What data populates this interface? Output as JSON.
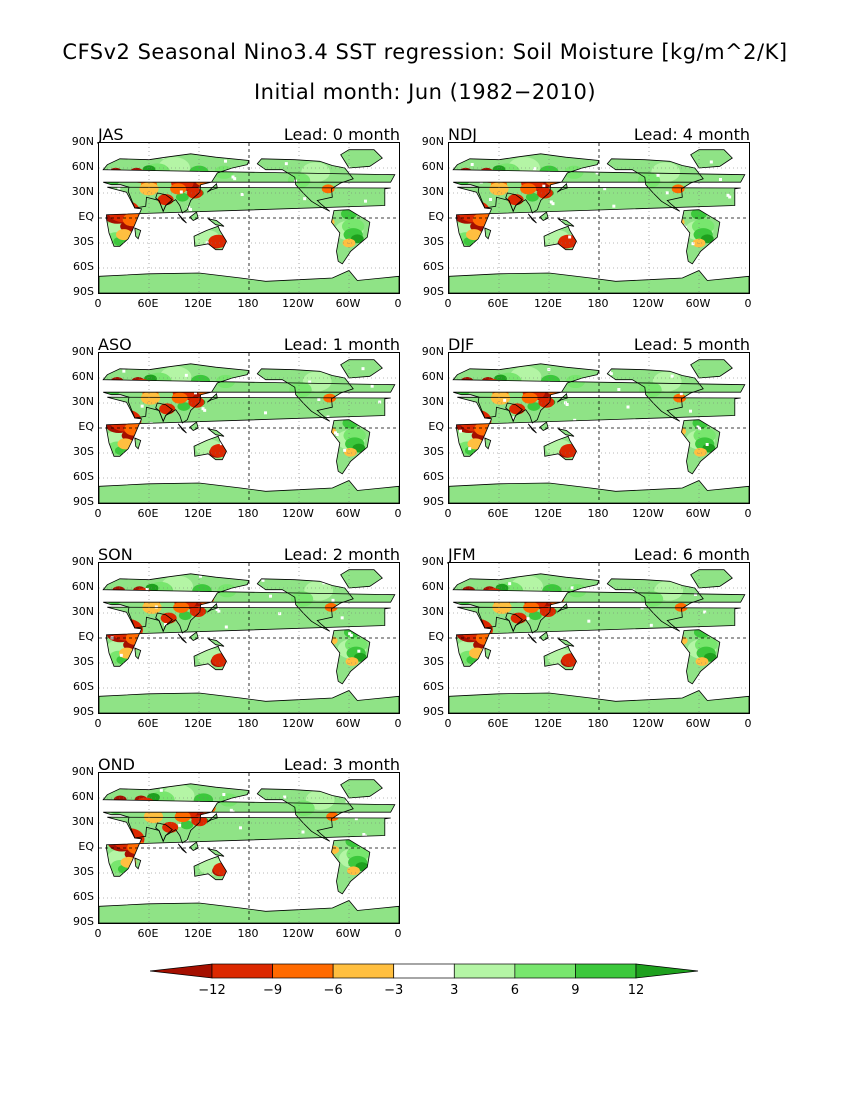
{
  "title_line1": "CFSv2 Seasonal Nino3.4 SST regression: Soil Moisture [kg/m^2/K]",
  "title_line2": "Initial month: Jun (1982−2010)",
  "chart_data": {
    "type": "heatmap",
    "variable": "Soil Moisture",
    "units": "kg/m^2/K",
    "y_tick_labels": [
      "90N",
      "60N",
      "30N",
      "EQ",
      "30S",
      "60S",
      "90S"
    ],
    "x_tick_labels": [
      "0",
      "60E",
      "120E",
      "180",
      "120W",
      "60W",
      "0"
    ],
    "xlim": [
      0,
      360
    ],
    "ylim": [
      -90,
      90
    ],
    "panels": [
      {
        "season": "JAS",
        "lead": "Lead: 0 month"
      },
      {
        "season": "ASO",
        "lead": "Lead: 1 month"
      },
      {
        "season": "SON",
        "lead": "Lead: 2 month"
      },
      {
        "season": "OND",
        "lead": "Lead: 3 month"
      },
      {
        "season": "NDJ",
        "lead": "Lead: 4 month"
      },
      {
        "season": "DJF",
        "lead": "Lead: 5 month"
      },
      {
        "season": "JFM",
        "lead": "Lead: 6 month"
      }
    ],
    "colorbar": {
      "tick_labels": [
        "−12",
        "−9",
        "−6",
        "−3",
        "3",
        "6",
        "9",
        "12"
      ],
      "colors": [
        "#a50f00",
        "#dc2800",
        "#ff6a00",
        "#ffbf40",
        "#ffffff",
        "#b4f5a5",
        "#78e66e",
        "#3cc83c",
        "#1ea01e"
      ]
    }
  }
}
